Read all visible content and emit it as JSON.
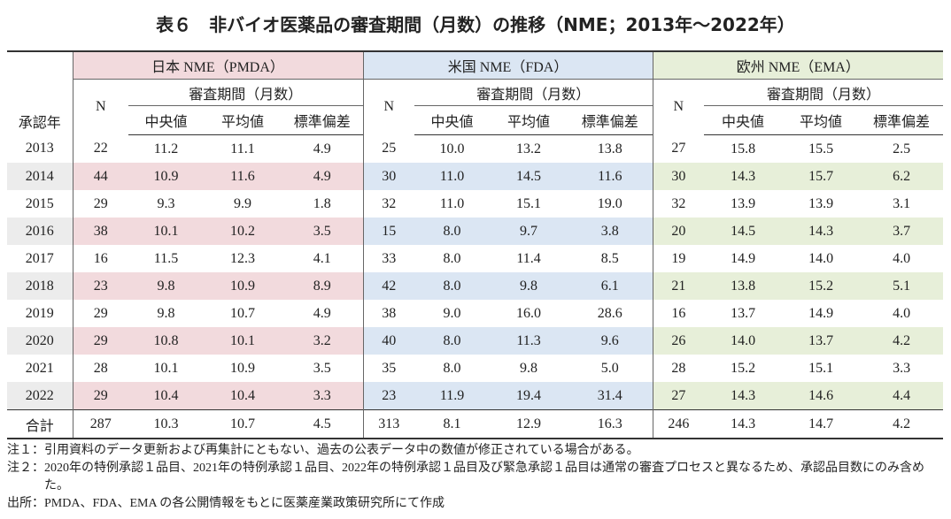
{
  "title": "表６　非バイオ医薬品の審査期間（月数）の推移（NME；2013年～2022年）",
  "table": {
    "year_header": "承認年",
    "groups": [
      "日本 NME（PMDA）",
      "米国 NME（FDA）",
      "欧州 NME（EMA）"
    ],
    "n_header": "N",
    "period_header": "審査期間（月数）",
    "stat_headers": [
      "中央値",
      "平均値",
      "標準偏差"
    ],
    "rows": [
      [
        "2013",
        "22",
        "11.2",
        "11.1",
        "4.9",
        "25",
        "10.0",
        "13.2",
        "13.8",
        "27",
        "15.8",
        "15.5",
        "2.5"
      ],
      [
        "2014",
        "44",
        "10.9",
        "11.6",
        "4.9",
        "30",
        "11.0",
        "14.5",
        "11.6",
        "30",
        "14.3",
        "15.7",
        "6.2"
      ],
      [
        "2015",
        "29",
        "9.3",
        "9.9",
        "1.8",
        "32",
        "11.0",
        "15.1",
        "19.0",
        "32",
        "13.9",
        "13.9",
        "3.1"
      ],
      [
        "2016",
        "38",
        "10.1",
        "10.2",
        "3.5",
        "15",
        "8.0",
        "9.7",
        "3.8",
        "20",
        "14.5",
        "14.3",
        "3.7"
      ],
      [
        "2017",
        "16",
        "11.5",
        "12.3",
        "4.1",
        "33",
        "8.0",
        "11.4",
        "8.5",
        "19",
        "14.9",
        "14.0",
        "4.0"
      ],
      [
        "2018",
        "23",
        "9.8",
        "10.9",
        "8.9",
        "42",
        "8.0",
        "9.8",
        "6.1",
        "21",
        "13.8",
        "15.2",
        "5.1"
      ],
      [
        "2019",
        "29",
        "9.8",
        "10.7",
        "4.9",
        "38",
        "9.0",
        "16.0",
        "28.6",
        "16",
        "13.7",
        "14.9",
        "4.0"
      ],
      [
        "2020",
        "29",
        "10.8",
        "10.1",
        "3.2",
        "40",
        "8.0",
        "11.3",
        "9.6",
        "26",
        "14.0",
        "13.7",
        "4.2"
      ],
      [
        "2021",
        "28",
        "10.1",
        "10.9",
        "3.5",
        "35",
        "8.0",
        "9.8",
        "5.0",
        "28",
        "15.2",
        "15.1",
        "3.3"
      ],
      [
        "2022",
        "29",
        "10.4",
        "10.4",
        "3.3",
        "23",
        "11.9",
        "19.4",
        "31.4",
        "27",
        "14.3",
        "14.6",
        "4.4"
      ],
      [
        "合計",
        "287",
        "10.3",
        "10.7",
        "4.5",
        "313",
        "8.1",
        "12.9",
        "16.3",
        "246",
        "14.3",
        "14.7",
        "4.2"
      ]
    ]
  },
  "notes": [
    {
      "label": "注１：",
      "text": "引用資料のデータ更新および再集計にともない、過去の公表データ中の数値が修正されている場合がある。"
    },
    {
      "label": "注２：",
      "text": "2020年の特例承認１品目、2021年の特例承認１品目、2022年の特例承認１品目及び緊急承認１品目は通常の審査プロセスと異なるため、承認品目数にのみ含めた。"
    },
    {
      "label": "出所：",
      "text": "PMDA、FDA、EMA の各公開情報をもとに医薬産業政策研究所にて作成"
    }
  ]
}
